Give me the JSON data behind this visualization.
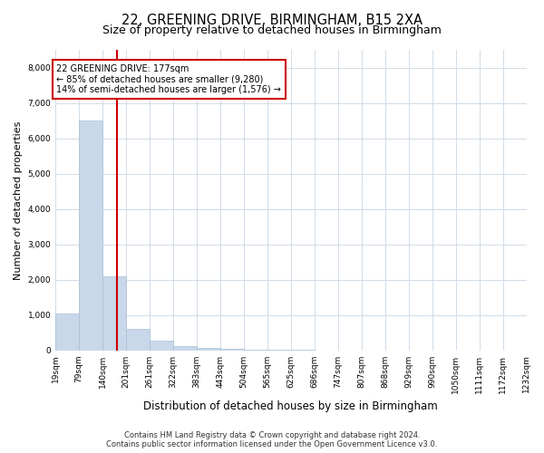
{
  "title_line1": "22, GREENING DRIVE, BIRMINGHAM, B15 2XA",
  "title_line2": "Size of property relative to detached houses in Birmingham",
  "xlabel": "Distribution of detached houses by size in Birmingham",
  "ylabel": "Number of detached properties",
  "annotation_line1": "22 GREENING DRIVE: 177sqm",
  "annotation_line2": "← 85% of detached houses are smaller (9,280)",
  "annotation_line3": "14% of semi-detached houses are larger (1,576) →",
  "red_line_x": 177,
  "bar_color": "#c8d8ea",
  "bar_edgecolor": "#a8c0d4",
  "red_line_color": "#cc0000",
  "annotation_box_edgecolor": "#cc0000",
  "grid_color": "#d0dce8",
  "ylim": [
    0,
    8500
  ],
  "yticks": [
    0,
    1000,
    2000,
    3000,
    4000,
    5000,
    6000,
    7000,
    8000
  ],
  "bins": [
    19,
    79,
    140,
    201,
    261,
    322,
    383,
    443,
    504,
    565,
    625,
    686,
    747,
    807,
    868,
    929,
    990,
    1050,
    1111,
    1172,
    1232
  ],
  "bin_labels": [
    "19sqm",
    "79sqm",
    "140sqm",
    "201sqm",
    "261sqm",
    "322sqm",
    "383sqm",
    "443sqm",
    "504sqm",
    "565sqm",
    "625sqm",
    "686sqm",
    "747sqm",
    "807sqm",
    "868sqm",
    "929sqm",
    "990sqm",
    "1050sqm",
    "1111sqm",
    "1172sqm",
    "1232sqm"
  ],
  "counts": [
    1050,
    6500,
    2100,
    600,
    280,
    130,
    60,
    45,
    30,
    20,
    5,
    0,
    0,
    0,
    0,
    0,
    0,
    0,
    0,
    0
  ],
  "footer_line1": "Contains HM Land Registry data © Crown copyright and database right 2024.",
  "footer_line2": "Contains public sector information licensed under the Open Government Licence v3.0.",
  "background_color": "#ffffff",
  "title_fontsize": 10.5,
  "subtitle_fontsize": 9,
  "ylabel_fontsize": 8,
  "xlabel_fontsize": 8.5,
  "tick_fontsize": 6.5,
  "annotation_fontsize": 7,
  "footer_fontsize": 6
}
